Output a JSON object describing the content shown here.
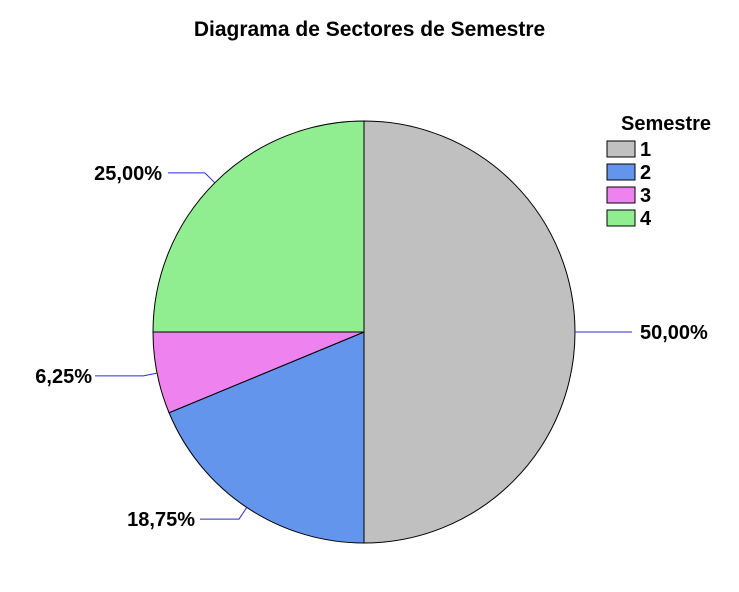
{
  "chart_data": {
    "type": "pie",
    "title": "Diagrama de Sectores de Semestre",
    "categories": [
      "1",
      "2",
      "3",
      "4"
    ],
    "values": [
      50.0,
      18.75,
      6.25,
      25.0
    ],
    "labels": [
      "50,00%",
      "18,75%",
      "6,25%",
      "25,00%"
    ],
    "colors": [
      "#c0c0c0",
      "#6495ed",
      "#ee82ee",
      "#90ee90"
    ],
    "leader_color": "#2b2bd6",
    "start_angle_deg": 90,
    "direction": "clockwise",
    "legend": {
      "title": "Semestre",
      "placement": "top-right",
      "entries": [
        "1",
        "2",
        "3",
        "4"
      ]
    }
  }
}
